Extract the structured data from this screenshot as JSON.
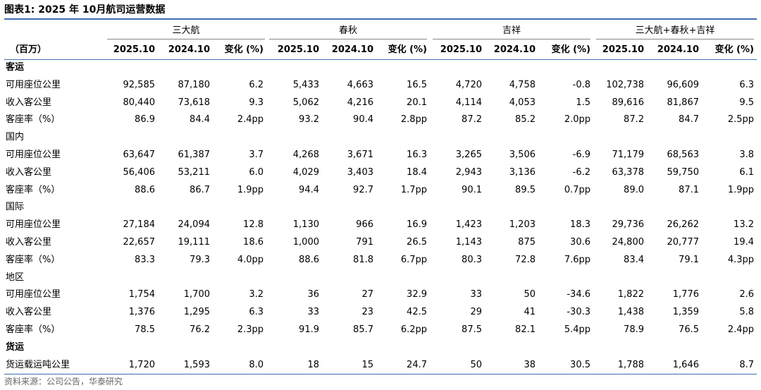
{
  "header": {
    "title": "图表1:  2025 年 10月航司运营数据",
    "unit": "（百万）",
    "groups": [
      "三大航",
      "春秋",
      "吉祥",
      "三大航+春秋+吉祥"
    ],
    "columns": [
      "2025.10",
      "2024.10",
      "变化 (%)",
      "2025.10",
      "2024.10",
      "变化 (%)",
      "2025.10",
      "2024.10",
      "变化 (%)",
      "2025.10",
      "2024.10",
      "变化 (%)"
    ]
  },
  "sections": [
    {
      "title": "客运",
      "rows": [
        {
          "label": "可用座位公里",
          "cells": [
            "92,585",
            "87,180",
            "6.2",
            "5,433",
            "4,663",
            "16.5",
            "4,720",
            "4,758",
            "-0.8",
            "102,738",
            "96,609",
            "6.3"
          ]
        },
        {
          "label": "收入客公里",
          "cells": [
            "80,440",
            "73,618",
            "9.3",
            "5,062",
            "4,216",
            "20.1",
            "4,114",
            "4,053",
            "1.5",
            "89,616",
            "81,867",
            "9.5"
          ]
        },
        {
          "label": "客座率（%）",
          "cells": [
            "86.9",
            "84.4",
            "2.4pp",
            "93.2",
            "90.4",
            "2.8pp",
            "87.2",
            "85.2",
            "2.0pp",
            "87.2",
            "84.7",
            "2.5pp"
          ]
        }
      ],
      "groups": [
        {
          "title": "国内",
          "rows": [
            {
              "label": "可用座位公里",
              "cells": [
                "63,647",
                "61,387",
                "3.7",
                "4,268",
                "3,671",
                "16.3",
                "3,265",
                "3,506",
                "-6.9",
                "71,179",
                "68,563",
                "3.8"
              ]
            },
            {
              "label": "收入客公里",
              "cells": [
                "56,406",
                "53,211",
                "6.0",
                "4,029",
                "3,403",
                "18.4",
                "2,943",
                "3,136",
                "-6.2",
                "63,378",
                "59,750",
                "6.1"
              ]
            },
            {
              "label": "客座率（%）",
              "cells": [
                "88.6",
                "86.7",
                "1.9pp",
                "94.4",
                "92.7",
                "1.7pp",
                "90.1",
                "89.5",
                "0.7pp",
                "89.0",
                "87.1",
                "1.9pp"
              ]
            }
          ]
        },
        {
          "title": "国际",
          "rows": [
            {
              "label": "可用座位公里",
              "cells": [
                "27,184",
                "24,094",
                "12.8",
                "1,130",
                "966",
                "16.9",
                "1,423",
                "1,203",
                "18.3",
                "29,736",
                "26,262",
                "13.2"
              ]
            },
            {
              "label": "收入客公里",
              "cells": [
                "22,657",
                "19,111",
                "18.6",
                "1,000",
                "791",
                "26.5",
                "1,143",
                "875",
                "30.6",
                "24,800",
                "20,777",
                "19.4"
              ]
            },
            {
              "label": "客座率（%）",
              "cells": [
                "83.3",
                "79.3",
                "4.0pp",
                "88.6",
                "81.8",
                "6.7pp",
                "80.3",
                "72.8",
                "7.6pp",
                "83.4",
                "79.1",
                "4.3pp"
              ]
            }
          ]
        },
        {
          "title": "地区",
          "rows": [
            {
              "label": "可用座位公里",
              "cells": [
                "1,754",
                "1,700",
                "3.2",
                "36",
                "27",
                "32.9",
                "33",
                "50",
                "-34.6",
                "1,822",
                "1,776",
                "2.6"
              ]
            },
            {
              "label": "收入客公里",
              "cells": [
                "1,376",
                "1,295",
                "6.3",
                "33",
                "23",
                "42.5",
                "29",
                "41",
                "-30.3",
                "1,438",
                "1,359",
                "5.8"
              ]
            },
            {
              "label": "客座率（%）",
              "cells": [
                "78.5",
                "76.2",
                "2.3pp",
                "91.9",
                "85.7",
                "6.2pp",
                "87.5",
                "82.1",
                "5.4pp",
                "78.9",
                "76.5",
                "2.4pp"
              ]
            }
          ]
        }
      ]
    },
    {
      "title": "货运",
      "rows": [
        {
          "label": "货运载运吨公里",
          "cells": [
            "1,720",
            "1,593",
            "8.0",
            "18",
            "15",
            "24.7",
            "50",
            "38",
            "30.5",
            "1,788",
            "1,646",
            "8.7"
          ]
        }
      ],
      "groups": []
    }
  ],
  "source": "资料来源：公司公告，华泰研究"
}
